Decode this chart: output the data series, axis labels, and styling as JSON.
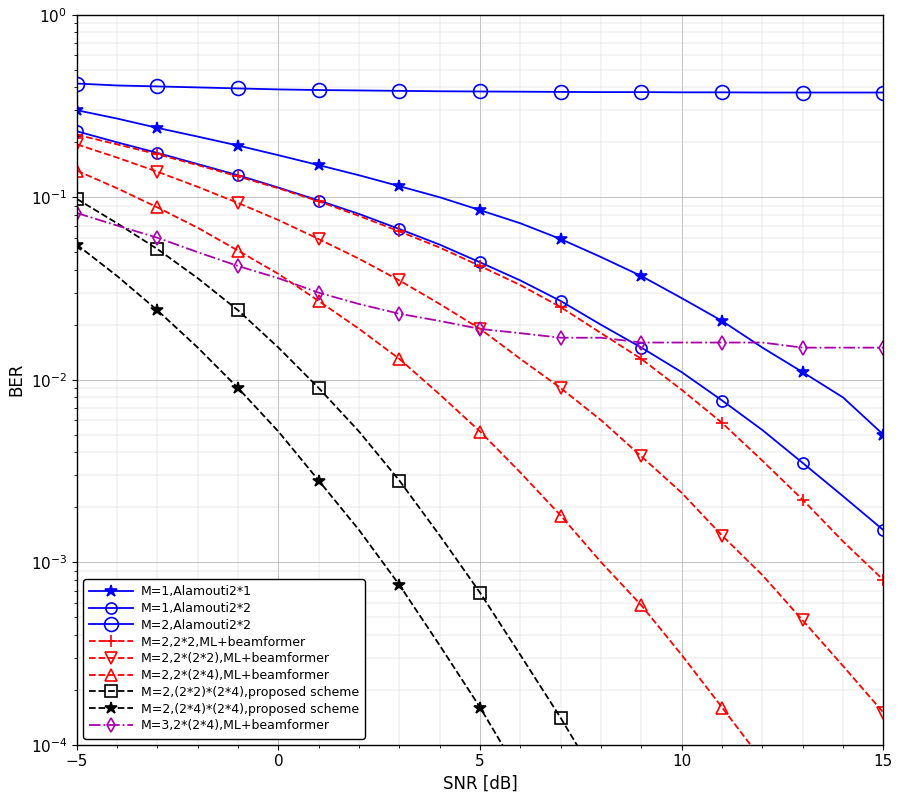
{
  "snr": [
    -5,
    -4,
    -3,
    -2,
    -1,
    0,
    1,
    2,
    3,
    4,
    5,
    6,
    7,
    8,
    9,
    10,
    11,
    12,
    13,
    14,
    15
  ],
  "xlabel": "SNR [dB]",
  "ylabel": "BER",
  "xlim": [
    -5,
    15
  ],
  "ylim": [
    0.0001,
    1.0
  ],
  "curves": [
    {
      "label": "M=1,Alamouti2*1",
      "color": "blue",
      "linestyle": "-",
      "marker": "*",
      "marker_every": 2,
      "markersize": 9,
      "linewidth": 1.3,
      "markerfacecolor": "blue",
      "ber": [
        0.3,
        0.27,
        0.24,
        0.215,
        0.192,
        0.17,
        0.15,
        0.132,
        0.115,
        0.1,
        0.085,
        0.072,
        0.059,
        0.047,
        0.037,
        0.028,
        0.021,
        0.015,
        0.011,
        0.008,
        0.005
      ]
    },
    {
      "label": "M=1,Alamouti2*2",
      "color": "blue",
      "linestyle": "-",
      "marker": "o",
      "marker_every": 2,
      "markersize": 8,
      "linewidth": 1.3,
      "markerfacecolor": "none",
      "ber": [
        0.23,
        0.2,
        0.175,
        0.152,
        0.132,
        0.113,
        0.096,
        0.081,
        0.067,
        0.055,
        0.044,
        0.035,
        0.027,
        0.02,
        0.015,
        0.011,
        0.0077,
        0.0053,
        0.0035,
        0.0023,
        0.0015
      ]
    },
    {
      "label": "M=2,Alamouti2*2",
      "color": "blue",
      "linestyle": "-",
      "marker": "o",
      "marker_every": 2,
      "markersize": 10,
      "linewidth": 1.3,
      "markerfacecolor": "none",
      "ber": [
        0.42,
        0.41,
        0.405,
        0.4,
        0.395,
        0.39,
        0.387,
        0.385,
        0.383,
        0.381,
        0.38,
        0.379,
        0.378,
        0.377,
        0.377,
        0.376,
        0.376,
        0.375,
        0.375,
        0.375,
        0.375
      ]
    },
    {
      "label": "M=2,2*2,ML+beamformer",
      "color": "red",
      "linestyle": "--",
      "marker": "+",
      "marker_every": 2,
      "markersize": 9,
      "linewidth": 1.3,
      "markerfacecolor": "red",
      "ber": [
        0.22,
        0.195,
        0.172,
        0.15,
        0.13,
        0.112,
        0.095,
        0.079,
        0.065,
        0.053,
        0.042,
        0.033,
        0.025,
        0.018,
        0.013,
        0.0088,
        0.0058,
        0.0036,
        0.0022,
        0.0013,
        0.0008
      ]
    },
    {
      "label": "M=2,2*(2*2),ML+beamformer",
      "color": "red",
      "linestyle": "--",
      "marker": "v",
      "marker_every": 2,
      "markersize": 8,
      "linewidth": 1.3,
      "markerfacecolor": "none",
      "ber": [
        0.195,
        0.165,
        0.138,
        0.114,
        0.093,
        0.075,
        0.059,
        0.046,
        0.035,
        0.026,
        0.019,
        0.013,
        0.009,
        0.006,
        0.0038,
        0.0024,
        0.0014,
        0.00085,
        0.00048,
        0.00027,
        0.00015
      ]
    },
    {
      "label": "M=2,2*(2*4),ML+beamformer",
      "color": "red",
      "linestyle": "--",
      "marker": "^",
      "marker_every": 2,
      "markersize": 8,
      "linewidth": 1.3,
      "markerfacecolor": "none",
      "ber": [
        0.14,
        0.112,
        0.088,
        0.068,
        0.051,
        0.038,
        0.027,
        0.019,
        0.013,
        0.0083,
        0.0052,
        0.0031,
        0.0018,
        0.001,
        0.00058,
        0.00031,
        0.00016,
        8.2e-05,
        4e-05,
        2e-05,
        1e-05
      ]
    },
    {
      "label": "M=2,(2*2)*(2*4),proposed scheme",
      "color": "black",
      "linestyle": "--",
      "marker": "s",
      "marker_every": 2,
      "markersize": 8,
      "linewidth": 1.3,
      "markerfacecolor": "none",
      "ber": [
        0.098,
        0.072,
        0.052,
        0.036,
        0.024,
        0.015,
        0.009,
        0.0052,
        0.0028,
        0.0014,
        0.00068,
        0.00031,
        0.00014,
        6e-05,
        null,
        null,
        null,
        null,
        null,
        null,
        null
      ]
    },
    {
      "label": "M=2,(2*4)*(2*4),proposed scheme",
      "color": "black",
      "linestyle": "--",
      "marker": "*",
      "marker_every": 2,
      "markersize": 9,
      "linewidth": 1.3,
      "markerfacecolor": "black",
      "ber": [
        0.055,
        0.037,
        0.024,
        0.015,
        0.009,
        0.0052,
        0.0028,
        0.0015,
        0.00075,
        0.00035,
        0.00016,
        6.8e-05,
        2.7e-05,
        null,
        null,
        null,
        null,
        null,
        null,
        null,
        null
      ]
    },
    {
      "label": "M=3,2*(2*4),ML+beamformer",
      "color": "#aa00aa",
      "linestyle": "-.",
      "marker": "d",
      "marker_every": 2,
      "markersize": 7,
      "linewidth": 1.3,
      "markerfacecolor": "none",
      "ber": [
        0.082,
        0.07,
        0.06,
        0.05,
        0.042,
        0.036,
        0.03,
        0.026,
        0.023,
        0.021,
        0.019,
        0.018,
        0.017,
        0.017,
        0.016,
        0.016,
        0.016,
        0.016,
        0.015,
        0.015,
        0.015
      ]
    }
  ]
}
